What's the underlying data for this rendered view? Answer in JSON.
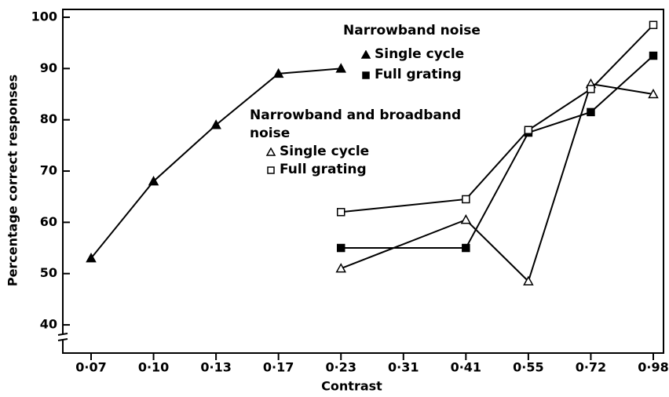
{
  "chart_data": {
    "type": "line",
    "xlabel": "Contrast",
    "ylabel": "Percentage correct responses",
    "categories": [
      "0·07",
      "0·10",
      "0·13",
      "0·17",
      "0·23",
      "0·31",
      "0·41",
      "0·55",
      "0·72",
      "0·98"
    ],
    "ylim": [
      34.5,
      100
    ],
    "yticks": [
      40,
      50,
      60,
      70,
      80,
      90,
      100
    ],
    "color": "#000000",
    "groups": [
      {
        "title": "Narrowband noise",
        "series": [
          {
            "name": "Single cycle",
            "marker": "triangle",
            "filled": true,
            "x": [
              "0·07",
              "0·10",
              "0·13",
              "0·17",
              "0·23"
            ],
            "values": [
              53,
              68,
              79,
              89,
              90
            ]
          },
          {
            "name": "Full grating",
            "marker": "square",
            "filled": true,
            "x": [
              "0·23",
              "0·41",
              "0·55",
              "0·72",
              "0·98"
            ],
            "values": [
              55,
              55,
              77.5,
              81.5,
              92.5
            ]
          }
        ]
      },
      {
        "title": "Narrowband and broadband noise",
        "series": [
          {
            "name": "Single cycle",
            "marker": "triangle",
            "filled": false,
            "x": [
              "0·23",
              "0·41",
              "0·55",
              "0·72",
              "0·98"
            ],
            "values": [
              51,
              60.5,
              48.5,
              87,
              85
            ]
          },
          {
            "name": "Full grating",
            "marker": "square",
            "filled": false,
            "x": [
              "0·23",
              "0·41",
              "0·55",
              "0·72",
              "0·98"
            ],
            "values": [
              62,
              64.5,
              78,
              86,
              98.5
            ]
          }
        ]
      }
    ]
  }
}
